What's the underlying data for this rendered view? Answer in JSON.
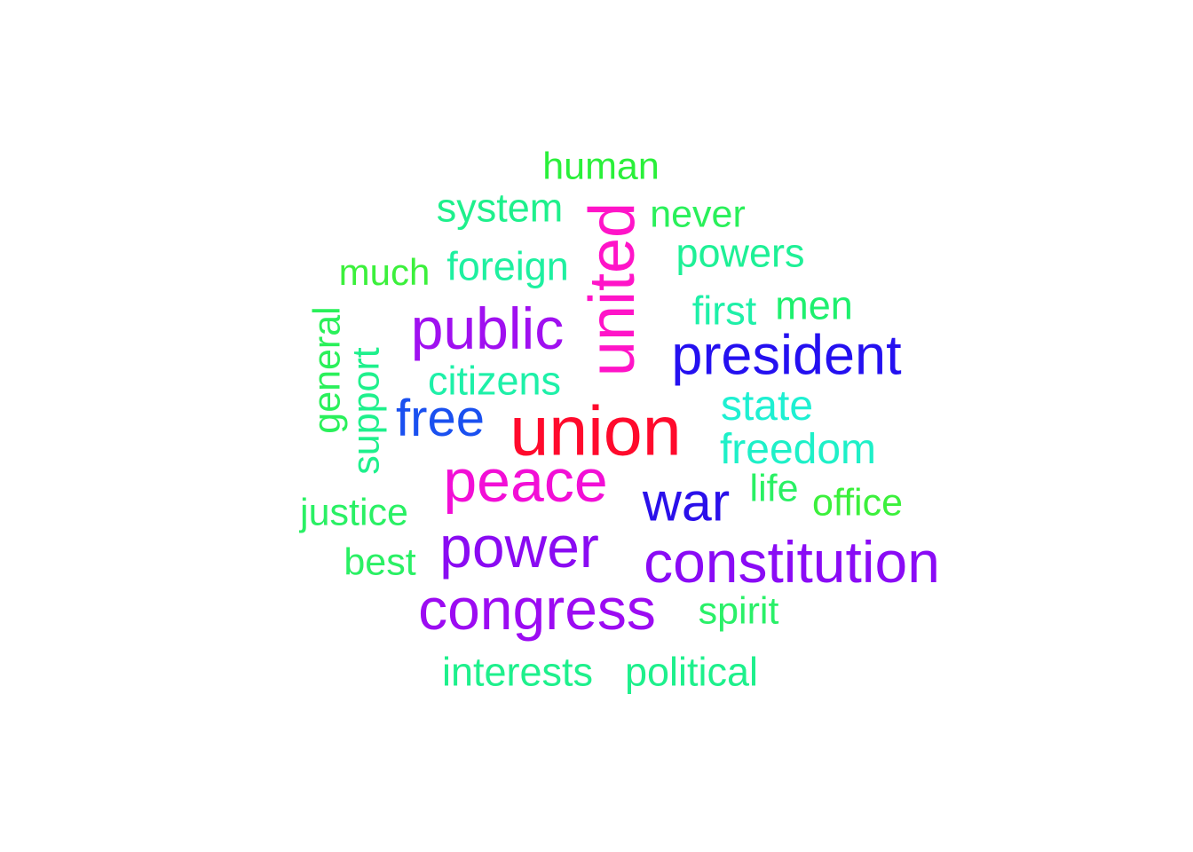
{
  "words": [
    {
      "id": "union",
      "text": "union",
      "color": "#ff0a2c"
    },
    {
      "id": "united",
      "text": "united",
      "color": "#ff14c8"
    },
    {
      "id": "peace",
      "text": "peace",
      "color": "#f20fd6"
    },
    {
      "id": "constitution",
      "text": "constitution",
      "color": "#8a0bf5"
    },
    {
      "id": "congress",
      "text": "congress",
      "color": "#9c0bf2"
    },
    {
      "id": "power",
      "text": "power",
      "color": "#8a0bf2"
    },
    {
      "id": "public",
      "text": "public",
      "color": "#a010f0"
    },
    {
      "id": "president",
      "text": "president",
      "color": "#2410f0"
    },
    {
      "id": "war",
      "text": "war",
      "color": "#2a10ea"
    },
    {
      "id": "free",
      "text": "free",
      "color": "#1a50f0"
    },
    {
      "id": "freedom",
      "text": "freedom",
      "color": "#1ef0c8"
    },
    {
      "id": "state",
      "text": "state",
      "color": "#1ef0d2"
    },
    {
      "id": "citizens",
      "text": "citizens",
      "color": "#1ef0a8"
    },
    {
      "id": "foreign",
      "text": "foreign",
      "color": "#1ef0a0"
    },
    {
      "id": "system",
      "text": "system",
      "color": "#1ef08c"
    },
    {
      "id": "powers",
      "text": "powers",
      "color": "#1ef096"
    },
    {
      "id": "first",
      "text": "first",
      "color": "#1ef0a8"
    },
    {
      "id": "men",
      "text": "men",
      "color": "#1ef06e"
    },
    {
      "id": "never",
      "text": "never",
      "color": "#2af05a"
    },
    {
      "id": "human",
      "text": "human",
      "color": "#2af03a"
    },
    {
      "id": "much",
      "text": "much",
      "color": "#3cf03c"
    },
    {
      "id": "general",
      "text": "general",
      "color": "#2af05a"
    },
    {
      "id": "support",
      "text": "support",
      "color": "#1ef08c"
    },
    {
      "id": "justice",
      "text": "justice",
      "color": "#2af064"
    },
    {
      "id": "best",
      "text": "best",
      "color": "#2af064"
    },
    {
      "id": "life",
      "text": "life",
      "color": "#2af064"
    },
    {
      "id": "office",
      "text": "office",
      "color": "#3cf03c"
    },
    {
      "id": "spirit",
      "text": "spirit",
      "color": "#2af068"
    },
    {
      "id": "interests",
      "text": "interests",
      "color": "#1ef08c"
    },
    {
      "id": "political",
      "text": "political",
      "color": "#1ef08c"
    }
  ]
}
